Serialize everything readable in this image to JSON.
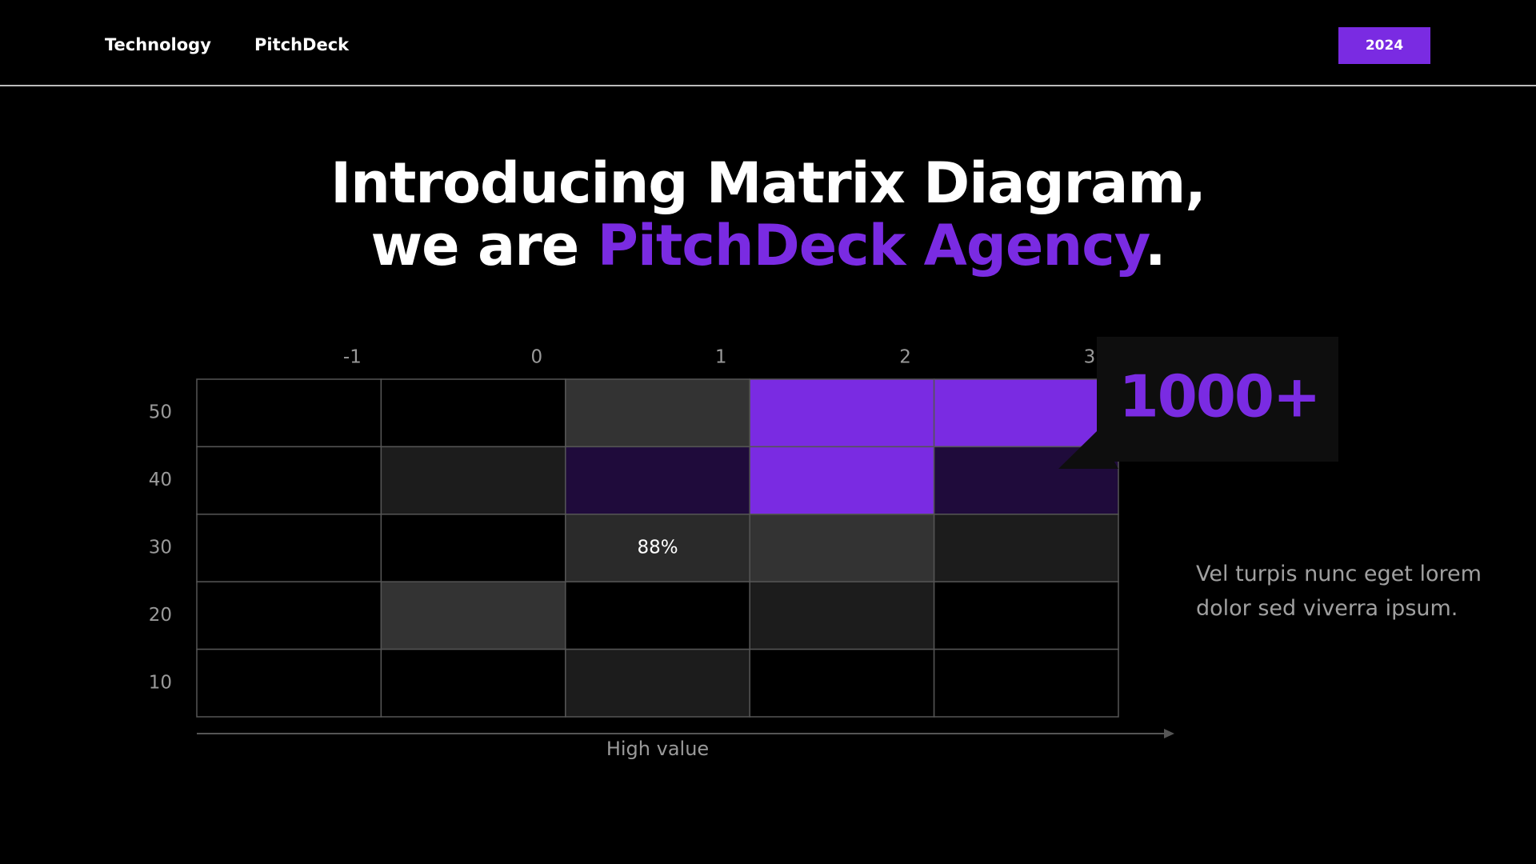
{
  "header": {
    "nav": [
      "Technology",
      "PitchDeck"
    ],
    "badge": "2024"
  },
  "title": {
    "line1": "Introducing Matrix Diagram,",
    "line2_prefix": "we are ",
    "highlight": "PitchDeck Agency",
    "suffix": "."
  },
  "matrix": {
    "column_labels": [
      "-1",
      "0",
      "1",
      "2",
      "3"
    ],
    "row_labels": [
      "50",
      "40",
      "30",
      "20",
      "10"
    ],
    "x_axis_label": "High value",
    "cells": [
      [
        {
          "color": "#000000"
        },
        {
          "color": "#000000"
        },
        {
          "color": "#333333"
        },
        {
          "color": "#7a2be2"
        },
        {
          "color": "#7a2be2"
        }
      ],
      [
        {
          "color": "#000000"
        },
        {
          "color": "#1c1c1c"
        },
        {
          "color": "#1f0b3b"
        },
        {
          "color": "#7a2be2"
        },
        {
          "color": "#1f0b3b"
        }
      ],
      [
        {
          "color": "#000000"
        },
        {
          "color": "#000000"
        },
        {
          "color": "#2a2a2a",
          "label": "88%"
        },
        {
          "color": "#333333"
        },
        {
          "color": "#1c1c1c"
        }
      ],
      [
        {
          "color": "#000000"
        },
        {
          "color": "#333333"
        },
        {
          "color": "#000000"
        },
        {
          "color": "#1c1c1c"
        },
        {
          "color": "#000000"
        }
      ],
      [
        {
          "color": "#000000"
        },
        {
          "color": "#000000"
        },
        {
          "color": "#1c1c1c"
        },
        {
          "color": "#000000"
        },
        {
          "color": "#000000"
        }
      ]
    ]
  },
  "callout": "1000+",
  "description": "Vel turpis nunc eget lorem dolor sed viverra ipsum."
}
